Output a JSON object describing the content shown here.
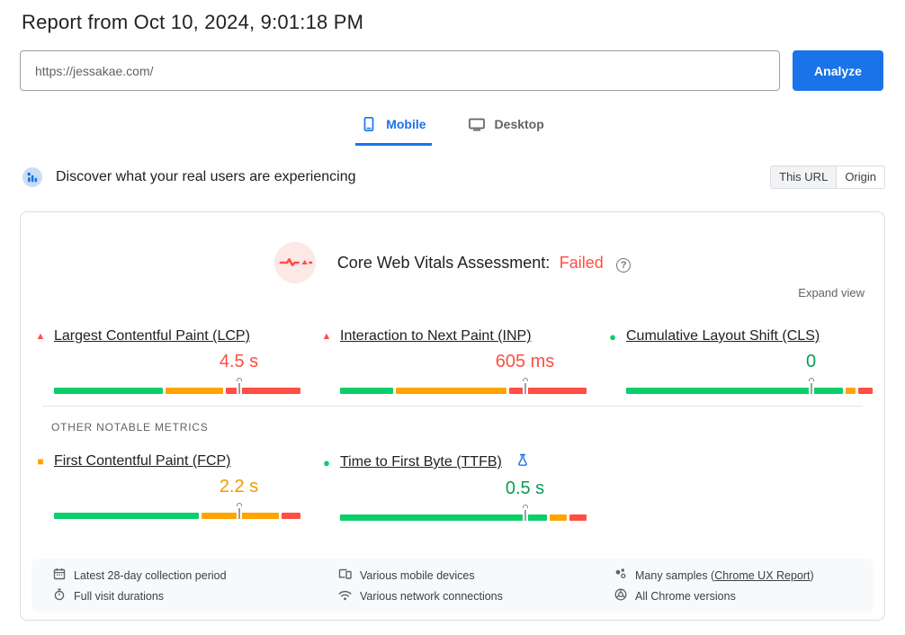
{
  "header": {
    "title": "Report from Oct 10, 2024, 9:01:18 PM"
  },
  "url_bar": {
    "value": "https://jessakae.com/",
    "analyze_label": "Analyze"
  },
  "tabs": {
    "mobile": "Mobile",
    "desktop": "Desktop",
    "active": "Mobile"
  },
  "field_section": {
    "heading": "Discover what your real users are experiencing",
    "scope_this_url": "This URL",
    "scope_origin": "Origin",
    "scope_selected": "This URL"
  },
  "assessment": {
    "title": "Core Web Vitals Assessment:",
    "result": "Failed",
    "help_glyph": "?",
    "expand_label": "Expand view"
  },
  "core_metrics": {
    "lcp": {
      "label": "Largest Contentful Paint (LCP)",
      "value": "4.5 s",
      "status": "poor",
      "status_glyph": "▲",
      "segments": [
        45,
        24,
        31
      ],
      "marker_pct": 75
    },
    "inp": {
      "label": "Interaction to Next Paint (INP)",
      "value": "605 ms",
      "status": "poor",
      "status_glyph": "▲",
      "segments": [
        22,
        46,
        32
      ],
      "marker_pct": 75
    },
    "cls": {
      "label": "Cumulative Layout Shift (CLS)",
      "value": "0",
      "status": "good",
      "status_glyph": "●",
      "segments": [
        90,
        4,
        6
      ],
      "marker_pct": 75
    }
  },
  "other_metrics_label": "OTHER NOTABLE METRICS",
  "other_metrics": {
    "fcp": {
      "label": "First Contentful Paint (FCP)",
      "value": "2.2 s",
      "status": "average",
      "status_glyph": "■",
      "segments": [
        60,
        32,
        8
      ],
      "marker_pct": 75
    },
    "ttfb": {
      "label": "Time to First Byte (TTFB)",
      "value": "0.5 s",
      "status": "good",
      "status_glyph": "●",
      "experimental": true,
      "segments": [
        86,
        7,
        7
      ],
      "marker_pct": 75
    }
  },
  "footer": {
    "collection_period": "Latest 28-day collection period",
    "devices": "Various mobile devices",
    "samples_prefix": "Many samples (",
    "samples_link": "Chrome UX Report",
    "samples_suffix": ")",
    "durations": "Full visit durations",
    "network": "Various network connections",
    "versions": "All Chrome versions"
  },
  "colors": {
    "good": "#0cce6b",
    "average": "#ffa400",
    "poor": "#ff4e42",
    "accent": "#1a73e8",
    "text": "#202124",
    "muted": "#5f6368",
    "border": "#dadce0",
    "footer-bg": "#f8f9fa",
    "cwv-icon-bg": "#fce8e6",
    "toggle-selected": "#f1f3f4"
  }
}
